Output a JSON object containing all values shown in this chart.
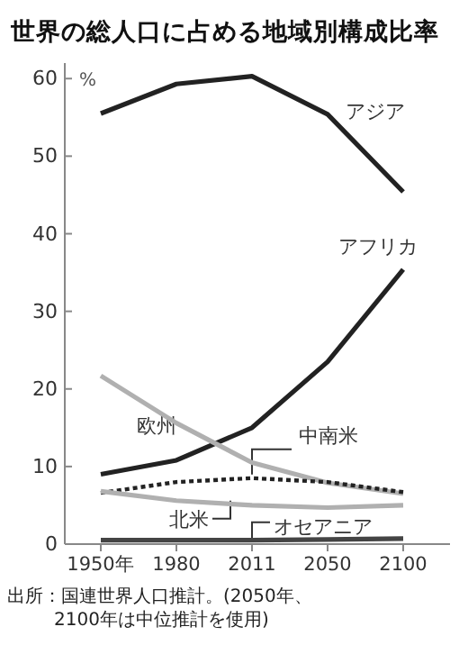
{
  "chart_data": {
    "type": "line",
    "title": "世界の総人口に占める地域別構成比率",
    "categories": [
      "1950年",
      "1980",
      "2011",
      "2050",
      "2100"
    ],
    "ylim": [
      0,
      62
    ],
    "yticks": [
      0,
      10,
      20,
      30,
      40,
      50,
      60
    ],
    "grid": false,
    "legend": false,
    "marker": "none",
    "series": [
      {
        "name": "アジア",
        "color": "#222222",
        "values": [
          55.5,
          59.3,
          60.3,
          55.4,
          45.4
        ]
      },
      {
        "name": "アフリカ",
        "color": "#222222",
        "values": [
          9,
          10.8,
          15,
          23.5,
          35.4
        ]
      },
      {
        "name": "欧州",
        "color": "#b0b0b0",
        "values": [
          21.7,
          15.6,
          10.5,
          7.9,
          6.5
        ]
      },
      {
        "name": "中南米",
        "color": "#222222",
        "line_style": "dotted",
        "values": [
          6.6,
          8,
          8.5,
          8,
          6.7
        ]
      },
      {
        "name": "北米",
        "color": "#b0b0b0",
        "values": [
          6.8,
          5.6,
          5,
          4.7,
          5
        ]
      },
      {
        "name": "オセアニア",
        "color": "#444444",
        "values": [
          0.5,
          0.5,
          0.5,
          0.6,
          0.7
        ]
      }
    ],
    "annotations": [
      "%",
      "出所：国連世界人口推計。(2050年、2100年は中位推計を使用)"
    ]
  }
}
